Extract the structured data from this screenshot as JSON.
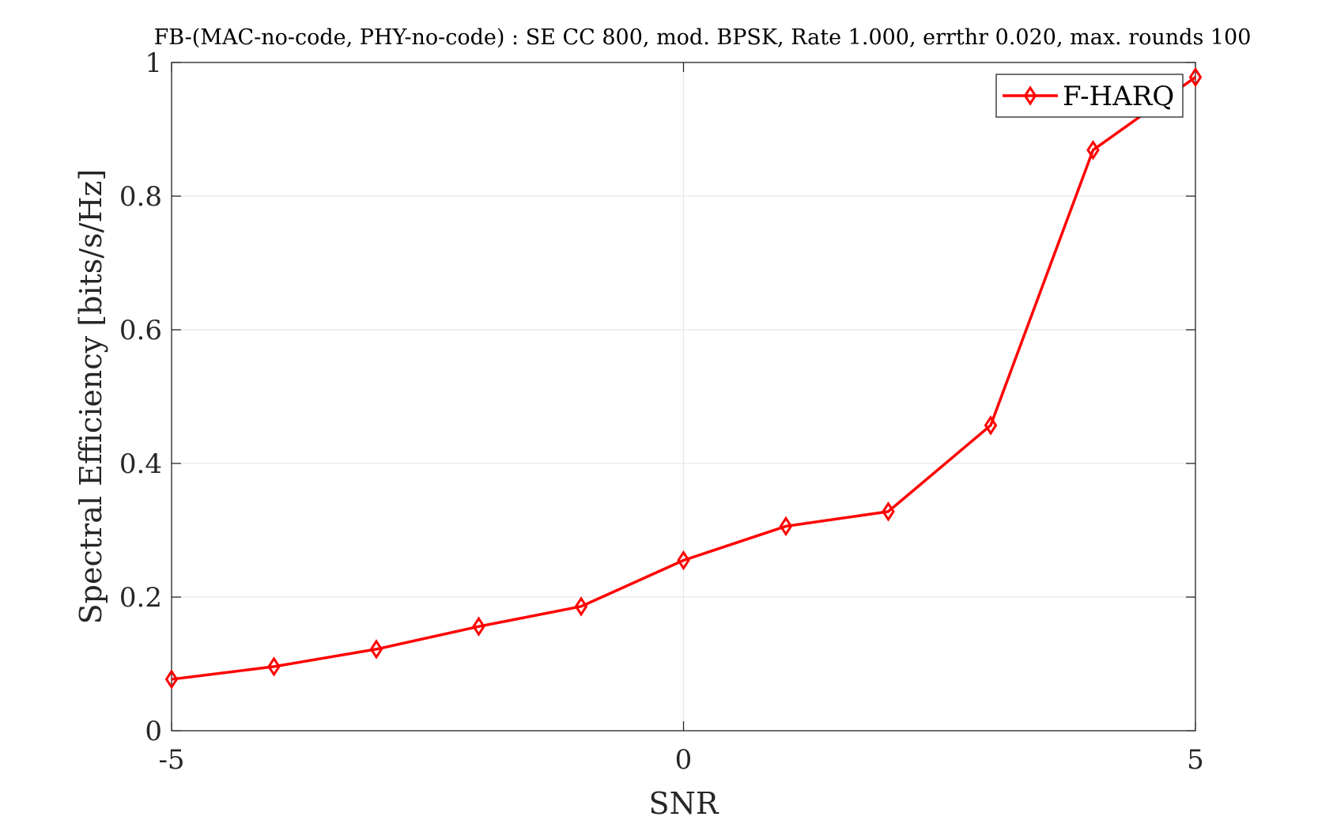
{
  "chart_data": {
    "type": "line",
    "title": "FB-(MAC-no-code, PHY-no-code) : SE CC 800, mod. BPSK, Rate 1.000, errthr 0.020, max. rounds 100",
    "xlabel": "SNR",
    "ylabel": "Spectral Efficiency [bits/s/Hz]",
    "xlim": [
      -5,
      5
    ],
    "ylim": [
      0,
      1
    ],
    "x_ticks": [
      -5,
      0,
      5
    ],
    "x_tick_labels": [
      "-5",
      "0",
      "5"
    ],
    "y_ticks": [
      0,
      0.2,
      0.4,
      0.6,
      0.8,
      1
    ],
    "y_tick_labels": [
      "0",
      "0.2",
      "0.4",
      "0.6",
      "0.8",
      "1"
    ],
    "grid": true,
    "legend_position": "top-right",
    "x": [
      -5,
      -4,
      -3,
      -2,
      -1,
      0,
      1,
      2,
      3,
      4,
      5
    ],
    "series": [
      {
        "name": "F-HARQ",
        "color": "#ff0000",
        "marker": "diamond",
        "values": [
          0.077,
          0.096,
          0.122,
          0.156,
          0.186,
          0.255,
          0.306,
          0.328,
          0.457,
          0.869,
          0.978
        ]
      }
    ]
  }
}
